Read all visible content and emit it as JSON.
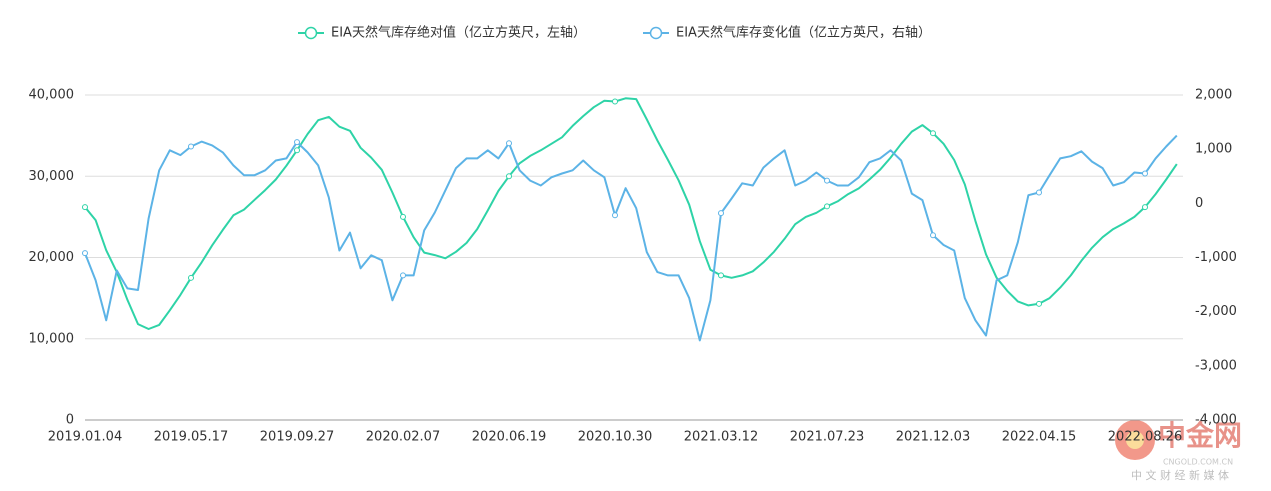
{
  "chart_data": {
    "type": "line",
    "categories": [
      "2019.01.04",
      null,
      null,
      null,
      null,
      null,
      null,
      null,
      null,
      null,
      "2019.05.17",
      null,
      null,
      null,
      null,
      null,
      null,
      null,
      null,
      null,
      "2019.09.27",
      null,
      null,
      null,
      null,
      null,
      null,
      null,
      null,
      null,
      "2020.02.07",
      null,
      null,
      null,
      null,
      null,
      null,
      null,
      null,
      null,
      "2020.06.19",
      null,
      null,
      null,
      null,
      null,
      null,
      null,
      null,
      null,
      "2020.10.30",
      null,
      null,
      null,
      null,
      null,
      null,
      null,
      null,
      null,
      "2021.03.12",
      null,
      null,
      null,
      null,
      null,
      null,
      null,
      null,
      null,
      "2021.07.23",
      null,
      null,
      null,
      null,
      null,
      null,
      null,
      null,
      null,
      "2021.12.03",
      null,
      null,
      null,
      null,
      null,
      null,
      null,
      null,
      null,
      "2022.04.15",
      null,
      null,
      null,
      null,
      null,
      null,
      null,
      null,
      null,
      "2022.08.26",
      null,
      null,
      null
    ],
    "series": [
      {
        "name": "EIA天然气库存绝对值（亿立方英尺，左轴）",
        "color": "#2ed3a7",
        "values": [
          26200,
          24600,
          20900,
          18200,
          14800,
          11800,
          11200,
          11700,
          13500,
          15400,
          17500,
          19400,
          21500,
          23400,
          25200,
          25900,
          27100,
          28300,
          29600,
          31300,
          33200,
          35200,
          36900,
          37300,
          36100,
          35600,
          33500,
          32300,
          30800,
          28000,
          25000,
          22500,
          20600,
          20300,
          19900,
          20700,
          21800,
          23500,
          25800,
          28200,
          30000,
          31600,
          32500,
          33200,
          34000,
          34800,
          36200,
          37400,
          38500,
          39300,
          39200,
          39600,
          39500,
          37000,
          34400,
          32000,
          29500,
          26500,
          22000,
          18500,
          17800,
          17500,
          17800,
          18300,
          19400,
          20700,
          22300,
          24100,
          25000,
          25500,
          26300,
          26900,
          27800,
          28500,
          29600,
          30800,
          32300,
          34000,
          35500,
          36300,
          35300,
          34000,
          32000,
          29000,
          24500,
          20400,
          17500,
          15900,
          14600,
          14100,
          14300,
          15000,
          16300,
          17800,
          19600,
          21200,
          22500,
          23500,
          24200,
          25000,
          26200,
          27800,
          29600,
          31500
        ]
      },
      {
        "name": "EIA天然气库存变化值（亿立方英尺，右轴）",
        "color": "#5cb3e6",
        "axis": "y2",
        "values": [
          -920,
          -1420,
          -2160,
          -1240,
          -1570,
          -1600,
          -280,
          610,
          980,
          890,
          1050,
          1140,
          1070,
          940,
          700,
          520,
          520,
          610,
          790,
          830,
          1130,
          940,
          700,
          110,
          -870,
          -540,
          -1200,
          -960,
          -1050,
          -1790,
          -1330,
          -1330,
          -500,
          -170,
          240,
          650,
          830,
          830,
          980,
          830,
          1110,
          610,
          420,
          330,
          480,
          550,
          610,
          790,
          610,
          480,
          -220,
          280,
          -90,
          -900,
          -1270,
          -1330,
          -1330,
          -1750,
          -2530,
          -1790,
          -180,
          90,
          370,
          330,
          660,
          830,
          980,
          330,
          420,
          570,
          420,
          330,
          330,
          480,
          760,
          830,
          980,
          790,
          180,
          60,
          -590,
          -770,
          -870,
          -1750,
          -2160,
          -2440,
          -1420,
          -1330,
          -720,
          150,
          200,
          520,
          830,
          870,
          960,
          770,
          650,
          330,
          390,
          570,
          550,
          830,
          1050,
          1250
        ]
      }
    ],
    "ylim": [
      0,
      40000
    ],
    "yticks": [
      0,
      {
        "value": 10000,
        "label": "10,000"
      },
      {
        "value": 20000,
        "label": "20,000"
      },
      {
        "value": 30000,
        "label": "30,000"
      },
      {
        "value": 40000,
        "label": "40,000"
      }
    ],
    "y2lim": [
      -4000,
      2000
    ],
    "y2ticks": [
      {
        "value": -4000,
        "label": "-4,000"
      },
      {
        "value": -3000,
        "label": "-3,000"
      },
      {
        "value": -2000,
        "label": "-2,000"
      },
      {
        "value": -1000,
        "label": "-1,000"
      },
      0,
      {
        "value": 1000,
        "label": "1,000"
      },
      {
        "value": 2000,
        "label": "2,000"
      }
    ],
    "grid": true,
    "legend": "top"
  },
  "watermark": {
    "name": "中金网",
    "site": "CNGOLD.COM.CN",
    "slogan": "中 文 财 经 新 媒 体"
  }
}
